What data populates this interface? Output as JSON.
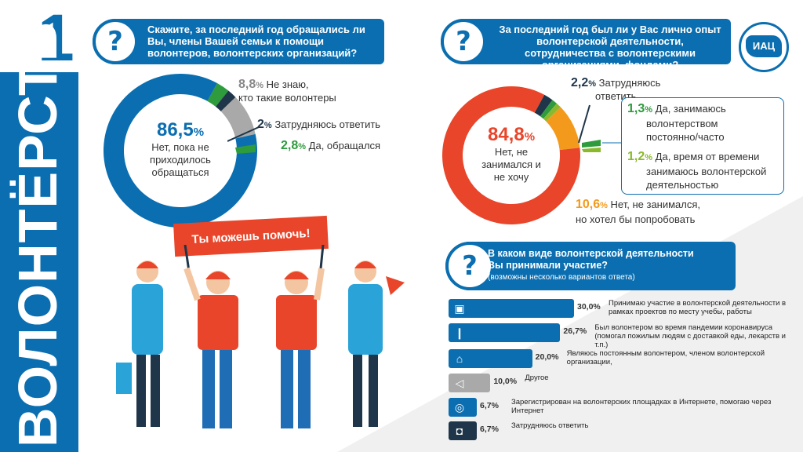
{
  "side": {
    "title": "ВОЛОНТЁРСТВО",
    "number": "1"
  },
  "colors": {
    "blue": "#0a6eb0",
    "orange": "#e8452a",
    "grey": "#a9a9a9",
    "dark": "#1f3549",
    "green": "#2e9b3c"
  },
  "q1": {
    "text": "Скажите, за последний год обращались ли Вы, члены Вашей семьи к помощи волонтеров, волонтерских организаций?",
    "center_pct": "86,5",
    "center_pct_sign": "%",
    "center_label": "Нет, пока не приходилось обращаться",
    "items": [
      {
        "pct": "8,8",
        "sign": "%",
        "label": "Не знаю,",
        "label2": "кто такие волонтеры"
      },
      {
        "pct": "2",
        "sign": "%",
        "label": "Затрудняюсь ответить"
      },
      {
        "pct": "2,8",
        "sign": "%",
        "label": "Да, обращался"
      }
    ]
  },
  "q2": {
    "text": "За последний год был ли у Вас лично опыт волонтерской деятельности, сотрудничества с волонтерскими организациями, фондами?",
    "center_pct": "84,8",
    "center_pct_sign": "%",
    "center_label": "Нет, не занимался и не хочу",
    "items": [
      {
        "pct": "2,2",
        "sign": "%",
        "label": "Затрудняюсь",
        "label2": "ответить"
      },
      {
        "pct": "1,3",
        "sign": "%",
        "label": "Да, занимаюсь",
        "label2": "волонтерством",
        "label3": "постоянно/часто"
      },
      {
        "pct": "1,2",
        "sign": "%",
        "label": "Да, время от времени",
        "label2": "занимаюсь волонтерской",
        "label3": "деятельностью"
      },
      {
        "pct": "10,6",
        "sign": "%",
        "label": "Нет, не занимался,",
        "label2": "но хотел бы попробовать"
      }
    ],
    "logo": "ИАЦ"
  },
  "q3": {
    "text1": "В каком виде волонтерской деятельности",
    "text2": "Вы принимали участие?",
    "note": "(возможны несколько вариантов ответа)",
    "rows": [
      {
        "value": "30,0%",
        "frac": 0.3,
        "icon": "briefcase-icon",
        "glyph": "▣",
        "color": "#0a6eb0",
        "label": "Принимаю участие в волонтерской деятельности в рамках проектов по месту учебы, работы"
      },
      {
        "value": "26,7%",
        "frac": 0.267,
        "icon": "thermometer-icon",
        "glyph": "❙",
        "color": "#0a6eb0",
        "label": "Был волонтером во время пандемии коронавируса (помогал пожилым людям с доставкой еды, лекарств и т.п.)"
      },
      {
        "value": "20,0%",
        "frac": 0.2,
        "icon": "home-icon",
        "glyph": "⌂",
        "color": "#0a6eb0",
        "label": "Являюсь постоянным волонтером, членом волонтерской организации,"
      },
      {
        "value": "10,0%",
        "frac": 0.1,
        "icon": "megaphone-icon",
        "glyph": "◁",
        "color": "#a9a9a9",
        "label": "Другое"
      },
      {
        "value": "6,7%",
        "frac": 0.067,
        "icon": "globe-icon",
        "glyph": "◎",
        "color": "#0a6eb0",
        "label": "Зарегистрирован на волонтерских площадках в Интернете, помогаю через Интернет"
      },
      {
        "value": "6,7%",
        "frac": 0.067,
        "icon": "lock-icon",
        "glyph": "◘",
        "color": "#1f3549",
        "label": "Затрудняюсь ответить"
      }
    ]
  },
  "banner": "Ты можешь помочь!"
}
